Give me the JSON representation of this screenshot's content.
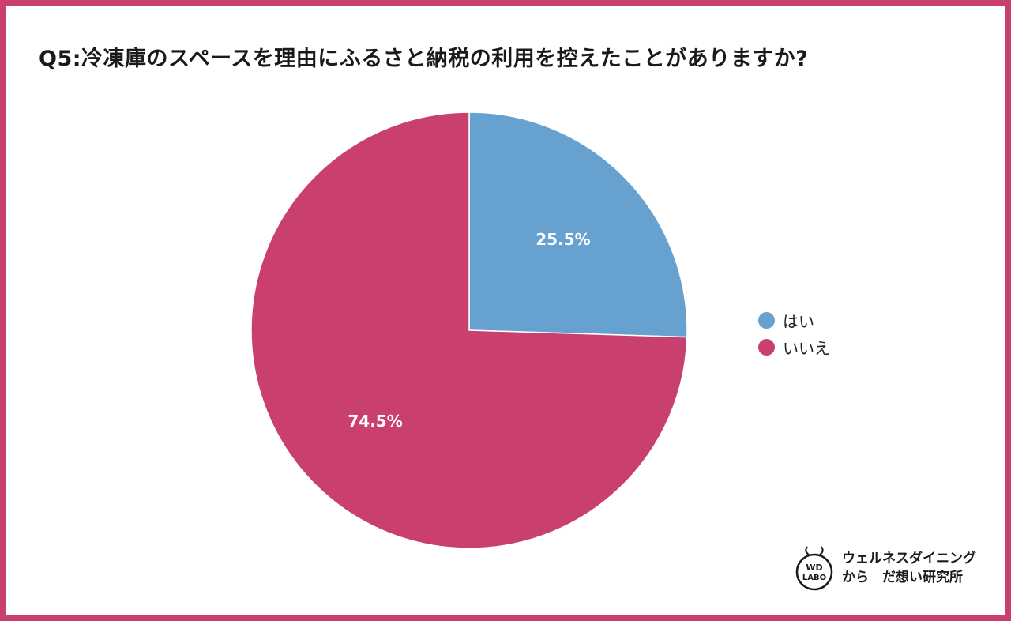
{
  "title": "Q5:冷凍庫のスペースを理由にふるさと納税の利用を控えたことがありますか?",
  "colors": {
    "frame": "#c93f6f",
    "yes": "#67a1cf",
    "no": "#c93f6f"
  },
  "chart_data": {
    "type": "pie",
    "title": "Q5:冷凍庫のスペースを理由にふるさと納税の利用を控えたことがありますか?",
    "categories": [
      "はい",
      "いいえ"
    ],
    "values": [
      25.5,
      74.5
    ],
    "value_labels": [
      "25.5%",
      "74.5%"
    ],
    "colors": [
      "#67a1cf",
      "#c93f6f"
    ],
    "legend_position": "right"
  },
  "legend": {
    "items": [
      {
        "label": "はい",
        "color": "#67a1cf"
      },
      {
        "label": "いいえ",
        "color": "#c93f6f"
      }
    ]
  },
  "brand": {
    "logo_line1": "WD",
    "logo_line2": "LABO",
    "text_line1": "ウェルネスダイニング",
    "text_line2": "から　だ想い研究所"
  }
}
